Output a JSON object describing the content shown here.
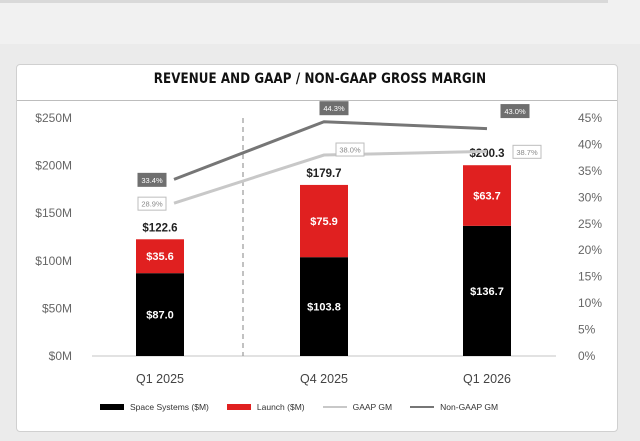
{
  "chart_data": {
    "type": "bar",
    "title": "REVENUE AND GAAP / NON-GAAP GROSS MARGIN",
    "categories": [
      "Q1 2025",
      "Q4 2025",
      "Q1 2026"
    ],
    "stacked": true,
    "series": [
      {
        "name": "Space Systems ($M)",
        "kind": "bar",
        "axis": "left",
        "values": [
          87.0,
          103.8,
          136.7
        ],
        "labels": [
          "$87.0",
          "$103.8",
          "$136.7"
        ],
        "color": "#000000"
      },
      {
        "name": "Launch ($M)",
        "kind": "bar",
        "axis": "left",
        "values": [
          35.6,
          75.9,
          63.7
        ],
        "labels": [
          "$35.6",
          "$75.9",
          "$63.7"
        ],
        "color": "#e02020"
      },
      {
        "name": "GAAP GM",
        "kind": "line",
        "axis": "right",
        "values": [
          28.9,
          38.0,
          38.7
        ],
        "labels": [
          "28.9%",
          "38.0%",
          "38.7%"
        ],
        "color": "#c8c8c8"
      },
      {
        "name": "Non-GAAP GM",
        "kind": "line",
        "axis": "right",
        "values": [
          33.4,
          44.3,
          43.0
        ],
        "labels": [
          "33.4%",
          "44.3%",
          "43.0%"
        ],
        "color": "#767676"
      }
    ],
    "totals": [
      "$122.6",
      "$179.7",
      "$200.3"
    ],
    "left_axis": {
      "ylim": [
        0,
        250
      ],
      "ticks": [
        "$0M",
        "$50M",
        "$100M",
        "$150M",
        "$200M",
        "$250M"
      ]
    },
    "right_axis": {
      "ylim": [
        0,
        45
      ],
      "ticks": [
        "0%",
        "5%",
        "10%",
        "15%",
        "20%",
        "25%",
        "30%",
        "35%",
        "40%",
        "45%"
      ]
    },
    "divider_after_category": 0,
    "legend_position": "bottom",
    "grid": false
  }
}
